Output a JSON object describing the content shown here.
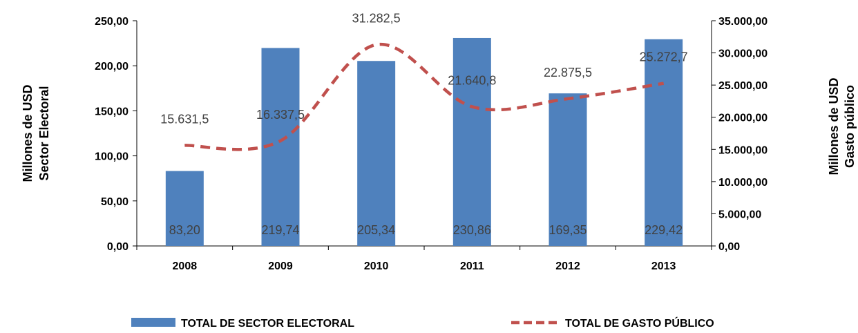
{
  "chart_data": {
    "type": "bar",
    "categories": [
      "2008",
      "2009",
      "2010",
      "2011",
      "2012",
      "2013"
    ],
    "series": [
      {
        "name": "TOTAL DE SECTOR ELECTORAL",
        "type": "bar",
        "axis": "left",
        "values": [
          83.2,
          219.74,
          205.34,
          230.86,
          169.35,
          229.42
        ],
        "labels": [
          "83,20",
          "219,74",
          "205,34",
          "230,86",
          "169,35",
          "229,42"
        ],
        "color": "#4f81bd"
      },
      {
        "name": "TOTAL DE GASTO PÚBLICO",
        "type": "line",
        "style": "dashed",
        "axis": "right",
        "values": [
          15631.5,
          16337.5,
          31282.5,
          21640.8,
          22875.5,
          25272.7
        ],
        "labels": [
          "15.631,5",
          "16.337,5",
          "31.282,5",
          "21.640,8",
          "22.875,5",
          "25.272,7"
        ],
        "color": "#c0504d"
      }
    ],
    "y_left": {
      "title_lines": [
        "Millones de USD",
        "Sector Electoral"
      ],
      "ylim": [
        0,
        250
      ],
      "ticks": [
        "0,00",
        "50,00",
        "100,00",
        "150,00",
        "200,00",
        "250,00"
      ]
    },
    "y_right": {
      "title_lines": [
        "Millones de USD",
        "Gasto público"
      ],
      "ylim": [
        0,
        35000
      ],
      "ticks": [
        "0,00",
        "5.000,00",
        "10.000,00",
        "15.000,00",
        "20.000,00",
        "25.000,00",
        "30.000,00",
        "35.000,00"
      ]
    },
    "grid": false,
    "legend_position": "bottom"
  }
}
